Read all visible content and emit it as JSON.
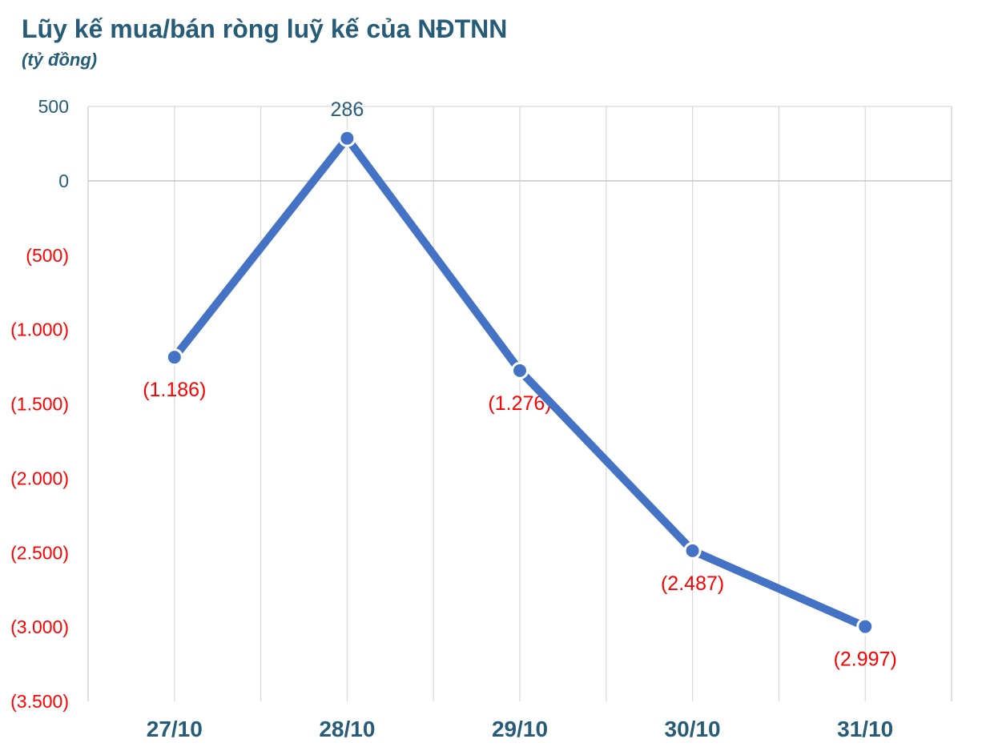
{
  "title": "Lũy kế mua/bán ròng luỹ kế của NĐTNN",
  "subtitle": "(tỷ đồng)",
  "colors": {
    "line": "#4472C4",
    "marker": "#4472C4",
    "marker_halo": "#FFFFFF",
    "grid": "#D9D9D9",
    "zero_line": "#C6C6C6",
    "dark_text": "#275C78",
    "negative_text": "#FF0000",
    "background": "#FFFFFF"
  },
  "chart_data": {
    "type": "line",
    "title": "Lũy kế mua/bán ròng luỹ kế của NĐTNN",
    "subtitle_unit": "(tỷ đồng)",
    "x": [
      "27/10",
      "28/10",
      "29/10",
      "30/10",
      "31/10"
    ],
    "series": [
      {
        "name": "Lũy kế mua/bán ròng của NĐTNN (tỷ đồng)",
        "values": [
          -1186,
          286,
          -1276,
          -2487,
          -2997
        ]
      }
    ],
    "point_labels": [
      "(1.186)",
      "286",
      "(1.276)",
      "(2.487)",
      "(2.997)"
    ],
    "ylim": [
      -3500,
      500
    ],
    "y_ticks": [
      {
        "value": 500,
        "label": "500"
      },
      {
        "value": 0,
        "label": "0"
      },
      {
        "value": -500,
        "label": "(500)"
      },
      {
        "value": -1000,
        "label": "(1.000)"
      },
      {
        "value": -1500,
        "label": "(1.500)"
      },
      {
        "value": -2000,
        "label": "(2.000)"
      },
      {
        "value": -2500,
        "label": "(2.500)"
      },
      {
        "value": -3000,
        "label": "(3.000)"
      },
      {
        "value": -3500,
        "label": "(3.500)"
      }
    ],
    "grid": "vertical gridlines at every half category step; horizontal line at 500 (plot top) and at 0 only",
    "legend": "none",
    "negative_format": "parentheses, red",
    "thousands_separator": "."
  }
}
